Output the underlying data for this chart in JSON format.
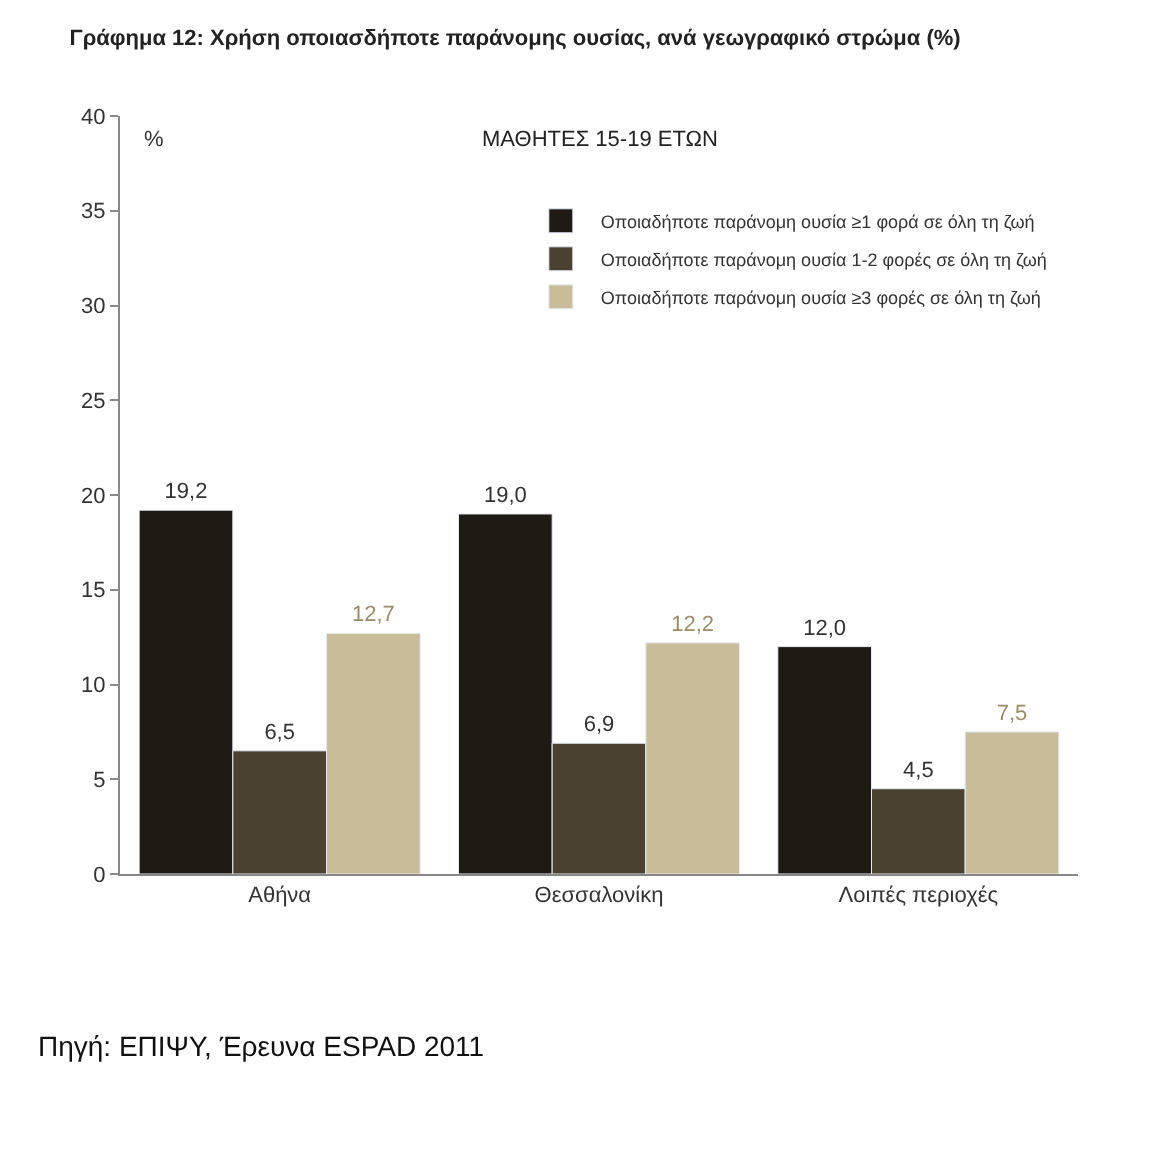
{
  "chart_data": {
    "type": "bar",
    "title": "Γράφημα 12: Χρήση οποιασδήποτε παράνομης ουσίας, ανά γεωγραφικό στρώμα (%)",
    "subtitle": "ΜΑΘΗΤΕΣ 15-19 ΕΤΩΝ",
    "ylabel": "%",
    "categories": [
      "Αθήνα",
      "Θεσσαλονίκη",
      "Λοιπές περιοχές"
    ],
    "series": [
      {
        "name": "Οποιαδήποτε παράνομη ουσία ≥1 φορά σε όλη τη ζωή",
        "color": "#1e1a14",
        "values": [
          19.2,
          19.0,
          12.0
        ],
        "value_labels": [
          "19,2",
          "19,0",
          "12,0"
        ]
      },
      {
        "name": "Οποιαδήποτε παράνομη ουσία 1-2 φορές σε όλη τη ζωή",
        "color": "#4a4130",
        "values": [
          6.5,
          6.9,
          4.5
        ],
        "value_labels": [
          "6,5",
          "6,9",
          "4,5"
        ]
      },
      {
        "name": "Οποιαδήποτε παράνομη ουσία ≥3 φορές σε όλη τη ζωή",
        "color": "#c9bc98",
        "values": [
          12.7,
          12.2,
          7.5
        ],
        "value_labels": [
          "12,7",
          "12,2",
          "7,5"
        ]
      }
    ],
    "ylim": [
      0,
      40
    ],
    "yticks": [
      0,
      5,
      10,
      15,
      20,
      25,
      30,
      35,
      40
    ],
    "legend": "top right",
    "annotations": [
      "Πηγή: ΕΠΙΨΥ, Έρευνα ESPAD 2011"
    ]
  }
}
